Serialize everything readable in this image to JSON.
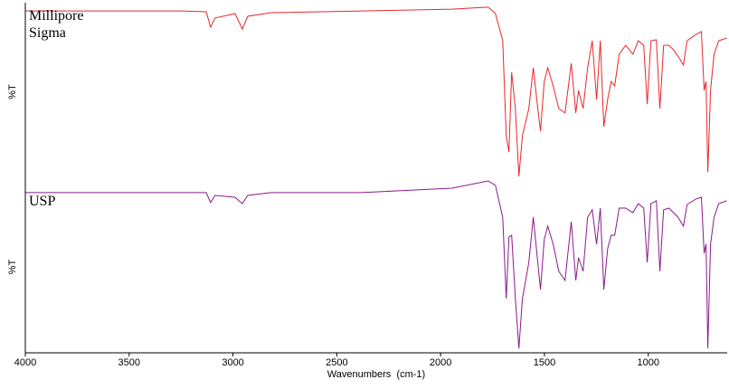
{
  "chart_data": [
    {
      "type": "line",
      "annotation": "Millipore Sigma",
      "ylabel": "%T",
      "x": [
        4000,
        3687,
        3251,
        3129,
        3108,
        3086,
        2990,
        2955,
        2929,
        2816,
        2380,
        1945,
        1771,
        1736,
        1701,
        1684,
        1671,
        1658,
        1640,
        1623,
        1606,
        1575,
        1554,
        1532,
        1519,
        1501,
        1484,
        1458,
        1431,
        1401,
        1371,
        1349,
        1336,
        1314,
        1292,
        1270,
        1249,
        1231,
        1214,
        1196,
        1179,
        1162,
        1140,
        1109,
        1074,
        1048,
        1022,
        1005,
        987,
        961,
        944,
        926,
        900,
        879,
        857,
        831,
        813,
        770,
        744,
        731,
        722,
        713,
        700,
        683,
        661,
        622
      ],
      "series": [
        {
          "color": "#e8272a",
          "values": [
            95.4,
            95.4,
            95.4,
            94.9,
            86.3,
            91.4,
            93.9,
            85.3,
            92.4,
            94.4,
            95.4,
            96.4,
            97.5,
            93.9,
            78.7,
            25.4,
            16.2,
            60.9,
            40.6,
            2.5,
            25.4,
            40.6,
            63.5,
            40.6,
            27.9,
            55.8,
            63.5,
            53.3,
            40.6,
            38.1,
            66.0,
            38.1,
            50.8,
            40.6,
            63.5,
            78.7,
            45.7,
            78.7,
            30.5,
            45.7,
            55.8,
            53.3,
            71.1,
            76.1,
            71.1,
            78.7,
            76.1,
            43.1,
            78.7,
            79.2,
            40.6,
            76.1,
            76.1,
            73.6,
            70.1,
            65.0,
            78.7,
            82.2,
            83.8,
            50.8,
            55.8,
            5.1,
            50.8,
            71.1,
            78.7,
            80.2
          ]
        }
      ],
      "xlim": [
        4000,
        620
      ],
      "ylim": [
        0,
        100
      ]
    },
    {
      "type": "line",
      "annotation": "USP",
      "ylabel": "%T",
      "xlabel": "Wavenumbers  (cm-1)",
      "x": [
        4000,
        3687,
        3251,
        3129,
        3108,
        3086,
        2990,
        2955,
        2929,
        2816,
        2380,
        1945,
        1771,
        1736,
        1701,
        1684,
        1671,
        1658,
        1640,
        1623,
        1606,
        1575,
        1554,
        1532,
        1519,
        1501,
        1484,
        1458,
        1431,
        1401,
        1371,
        1349,
        1336,
        1314,
        1292,
        1270,
        1249,
        1231,
        1214,
        1196,
        1179,
        1162,
        1140,
        1109,
        1074,
        1048,
        1022,
        1005,
        987,
        961,
        944,
        926,
        900,
        879,
        857,
        831,
        813,
        770,
        744,
        731,
        722,
        713,
        700,
        683,
        661,
        622
      ],
      "series": [
        {
          "color": "#8b1a8b",
          "values": [
            93.2,
            93.2,
            93.2,
            93.2,
            87.4,
            91.6,
            90.5,
            86.8,
            91.6,
            93.2,
            93.2,
            95.8,
            100,
            97.4,
            78.9,
            31.6,
            67.4,
            68.4,
            31.6,
            2.6,
            31.6,
            52.6,
            78.9,
            52.6,
            36.8,
            65.8,
            73.7,
            63.2,
            47.4,
            42.1,
            76.3,
            42.1,
            55.3,
            47.4,
            78.9,
            83.2,
            63.2,
            84.2,
            36.8,
            60.5,
            68.4,
            68.4,
            84.2,
            84.2,
            81.6,
            86.8,
            84.2,
            52.6,
            86.8,
            88.4,
            47.4,
            83.2,
            84.2,
            81.6,
            78.9,
            73.7,
            86.3,
            89.5,
            90.5,
            57.9,
            63.2,
            2.6,
            63.2,
            78.9,
            86.8,
            88.4
          ]
        }
      ],
      "xlim": [
        4000,
        620
      ],
      "ylim": [
        0,
        100
      ],
      "xticks": [
        4000,
        3500,
        3000,
        2500,
        2000,
        1500,
        1000
      ]
    }
  ]
}
